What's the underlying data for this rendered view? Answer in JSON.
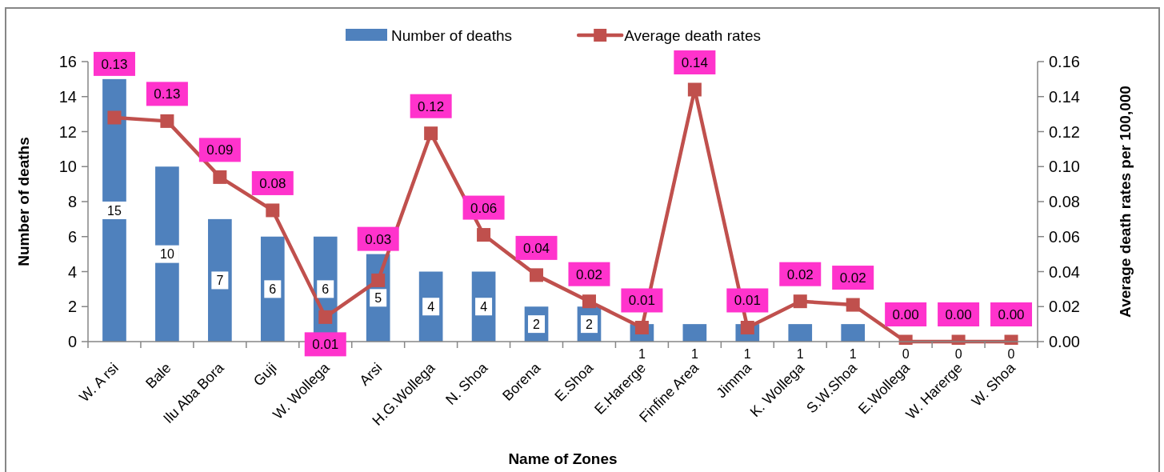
{
  "chart_data": {
    "type": "bar",
    "xlabel": "Name of Zones",
    "ylabel": "Number of deaths",
    "y2label": "Average death rates per 100,000",
    "categories": [
      "W. A rsi",
      "Bale",
      "Ilu Aba Bora",
      "Guji",
      "W. Wollega",
      "Arsi",
      "H.G.Wollega",
      "N. Shoa",
      "Borena",
      "E.Shoa",
      "E.Harerge",
      "Finfine Area",
      "Jimma",
      "K. Wollega",
      "S.W.Shoa",
      "E.Wollega",
      "W. Harerge",
      "W. Shoa"
    ],
    "series": [
      {
        "name": "Number of deaths",
        "color": "#4f81bd",
        "values": [
          15,
          10,
          7,
          6,
          6,
          5,
          4,
          4,
          2,
          2,
          1,
          1,
          1,
          1,
          1,
          0,
          0,
          0
        ],
        "value_labels": [
          "15",
          "10",
          "7",
          "6",
          "6",
          "5",
          "4",
          "4",
          "2",
          "2",
          "1",
          "1",
          "1",
          "1",
          "1",
          "0",
          "0",
          "0"
        ]
      },
      {
        "name": "Average death rates",
        "type": "line",
        "axis": "y2",
        "color": "#c0504d",
        "marker": "square",
        "values": [
          0.128,
          0.126,
          0.094,
          0.075,
          0.014,
          0.035,
          0.119,
          0.061,
          0.038,
          0.023,
          0.008,
          0.144,
          0.008,
          0.023,
          0.021,
          0.0,
          0.0,
          0.0
        ],
        "value_labels": [
          "0.13",
          "0.13",
          "0.09",
          "0.08",
          "0.01",
          "0.03",
          "0.12",
          "0.06",
          "0.04",
          "0.02",
          "0.01",
          "0.14",
          "0.01",
          "0.02",
          "0.02",
          "0.00",
          "0.00",
          "0.00"
        ]
      }
    ],
    "ylim": [
      0,
      16
    ],
    "yticks": [
      0,
      2,
      4,
      6,
      8,
      10,
      12,
      14,
      16
    ],
    "y2lim": [
      0,
      0.16
    ],
    "y2ticks": [
      {
        "value": 0,
        "label": "0.00"
      },
      {
        "value": 0.02,
        "label": "0.02"
      },
      {
        "value": 0.04,
        "label": "0.04"
      },
      {
        "value": 0.06,
        "label": "0.06"
      },
      {
        "value": 0.08,
        "label": "0.08"
      },
      {
        "value": 0.1,
        "label": "0.10"
      },
      {
        "value": 0.12,
        "label": "0.12"
      },
      {
        "value": 0.14,
        "label": "0.14"
      },
      {
        "value": 0.16,
        "label": "0.16"
      }
    ],
    "legend": "top"
  }
}
